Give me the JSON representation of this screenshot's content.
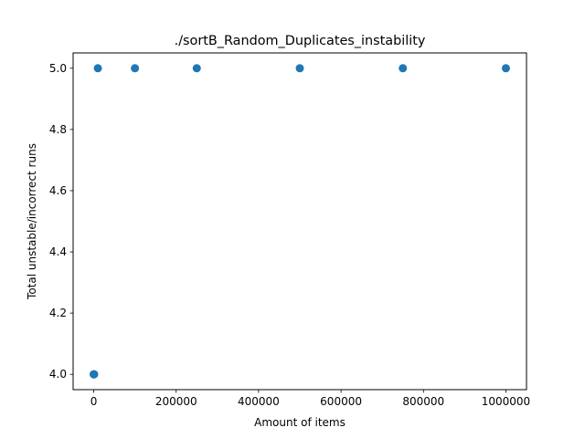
{
  "chart_data": {
    "type": "scatter",
    "title": "./sortB_Random_Duplicates_instability",
    "xlabel": "Amount of items",
    "ylabel": "Total unstable/incorrect runs",
    "xlim": [
      -50000,
      1050000
    ],
    "ylim": [
      3.95,
      5.05
    ],
    "xticks": [
      0,
      200000,
      400000,
      600000,
      800000,
      1000000
    ],
    "xtick_labels": [
      "0",
      "200000",
      "400000",
      "600000",
      "800000",
      "1000000"
    ],
    "yticks": [
      4.0,
      4.2,
      4.4,
      4.6,
      4.8,
      5.0
    ],
    "ytick_labels": [
      "4.0",
      "4.2",
      "4.4",
      "4.6",
      "4.8",
      "5.0"
    ],
    "grid": false,
    "marker_color": "#1f77b4",
    "series": [
      {
        "x": [
          10,
          100,
          1000,
          10000,
          100000,
          250000,
          500000,
          750000,
          1000000
        ],
        "y": [
          4,
          4,
          4,
          5,
          5,
          5,
          5,
          5,
          5
        ]
      }
    ]
  }
}
